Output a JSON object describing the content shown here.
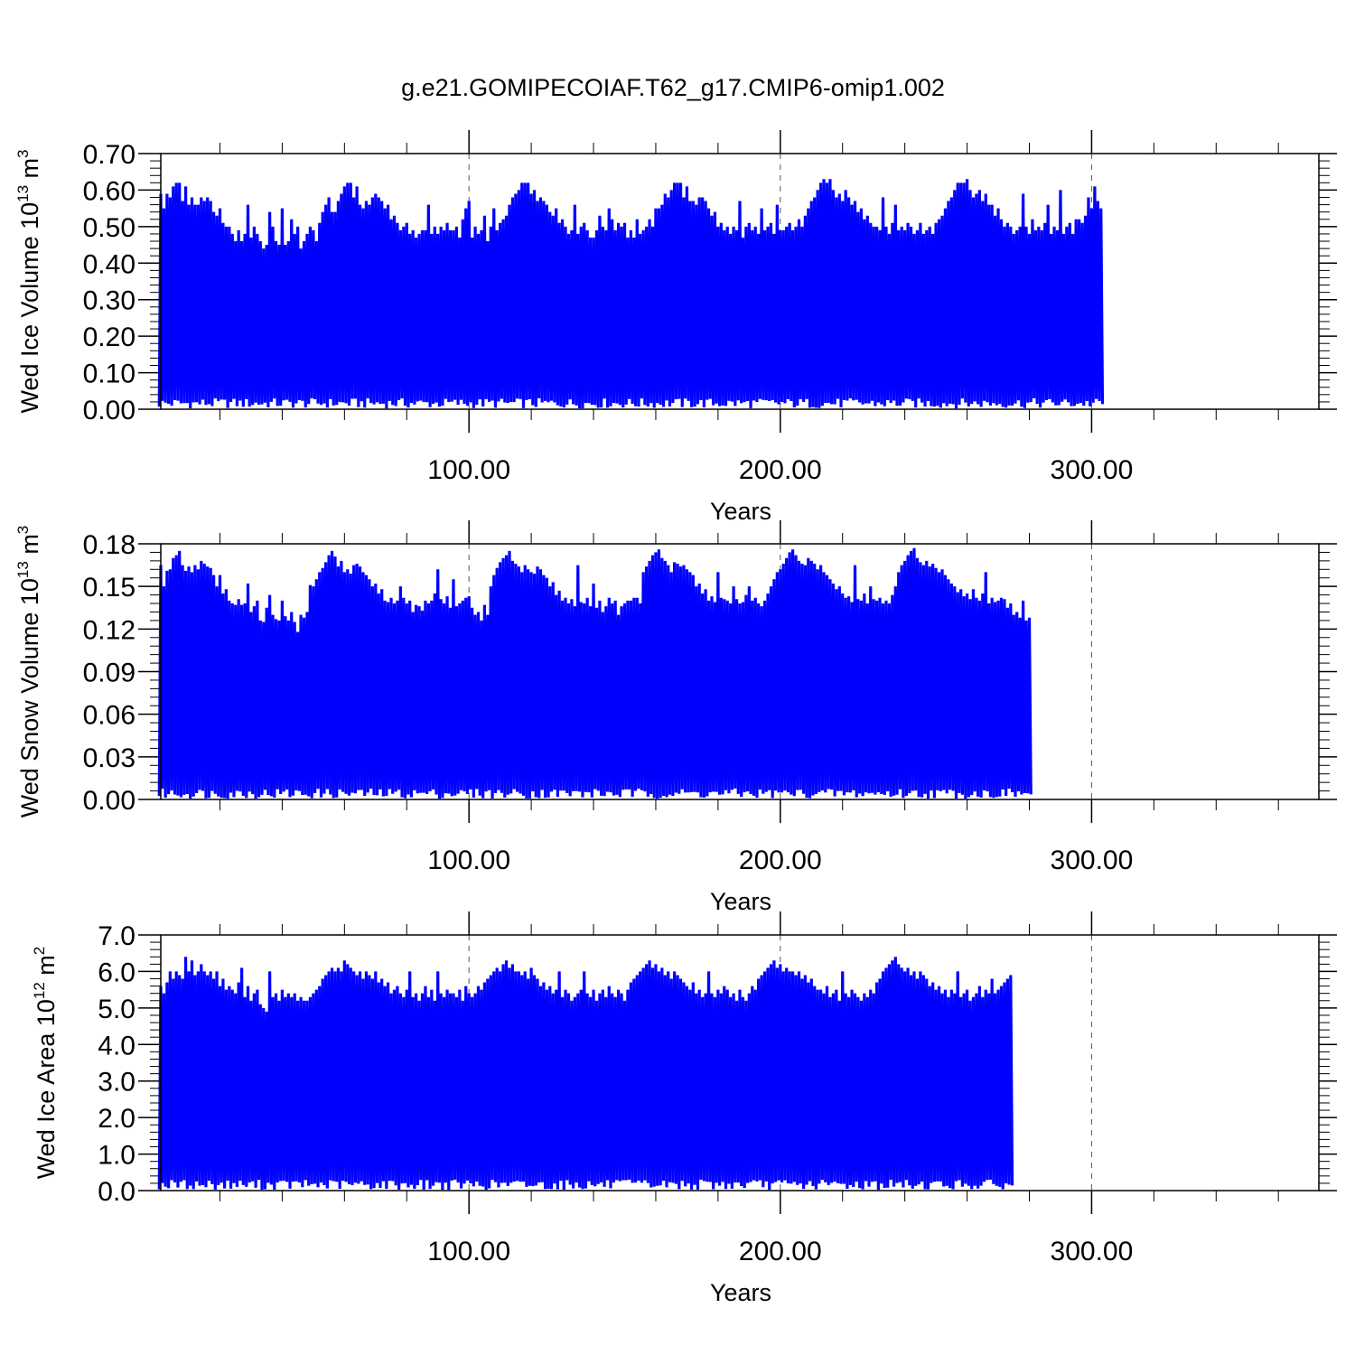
{
  "figure": {
    "title": "g.e21.GOMIPECOIAF.T62_g17.CMIP6-omip1.002"
  },
  "chart_data": [
    {
      "type": "line",
      "title": "g.e21.GOMIPECOIAF.T62_g17.CMIP6-omip1.002",
      "ylabel": "Wed Ice Volume 10",
      "ylabel_exponent": "13",
      "ylabel_unit": "m",
      "ylabel_unit_exponent": "3",
      "xlabel": "Years",
      "xlim": [
        1,
        373
      ],
      "ylim": [
        0,
        0.7
      ],
      "yticks": [
        0.0,
        0.1,
        0.2,
        0.3,
        0.4,
        0.5,
        0.6,
        0.7
      ],
      "ytick_labels": [
        "0.00",
        "0.10",
        "0.20",
        "0.30",
        "0.40",
        "0.50",
        "0.60",
        "0.70"
      ],
      "xticks": [
        100,
        200,
        300
      ],
      "xtick_labels": [
        "100.00",
        "200.00",
        "300.00"
      ],
      "grid": "dashed vertical lines at major x ticks",
      "series_color": "#0000ff",
      "series": [
        {
          "x_start": 1,
          "x_step": 1,
          "max": [
            0.59,
            0.55,
            0.59,
            0.58,
            0.61,
            0.62,
            0.62,
            0.57,
            0.61,
            0.56,
            0.58,
            0.56,
            0.56,
            0.58,
            0.57,
            0.58,
            0.57,
            0.54,
            0.53,
            0.55,
            0.51,
            0.5,
            0.5,
            0.48,
            0.46,
            0.49,
            0.46,
            0.48,
            0.56,
            0.47,
            0.5,
            0.48,
            0.46,
            0.44,
            0.45,
            0.54,
            0.5,
            0.46,
            0.45,
            0.55,
            0.45,
            0.46,
            0.52,
            0.48,
            0.5,
            0.44,
            0.46,
            0.48,
            0.5,
            0.49,
            0.46,
            0.51,
            0.54,
            0.56,
            0.58,
            0.54,
            0.54,
            0.57,
            0.59,
            0.61,
            0.62,
            0.62,
            0.58,
            0.61,
            0.56,
            0.55,
            0.57,
            0.56,
            0.58,
            0.59,
            0.58,
            0.57,
            0.55,
            0.56,
            0.52,
            0.53,
            0.51,
            0.49,
            0.5,
            0.51,
            0.48,
            0.49,
            0.47,
            0.48,
            0.49,
            0.49,
            0.56,
            0.48,
            0.5,
            0.48,
            0.5,
            0.49,
            0.51,
            0.49,
            0.49,
            0.5,
            0.47,
            0.52,
            0.55,
            0.57,
            0.47,
            0.5,
            0.48,
            0.49,
            0.53,
            0.46,
            0.5,
            0.55,
            0.49,
            0.51,
            0.52,
            0.53,
            0.56,
            0.58,
            0.59,
            0.6,
            0.62,
            0.62,
            0.62,
            0.59,
            0.6,
            0.57,
            0.58,
            0.57,
            0.56,
            0.54,
            0.53,
            0.55,
            0.51,
            0.52,
            0.5,
            0.48,
            0.49,
            0.56,
            0.48,
            0.5,
            0.51,
            0.49,
            0.47,
            0.47,
            0.49,
            0.53,
            0.5,
            0.49,
            0.55,
            0.52,
            0.49,
            0.51,
            0.5,
            0.51,
            0.47,
            0.49,
            0.47,
            0.52,
            0.48,
            0.49,
            0.5,
            0.52,
            0.5,
            0.55,
            0.55,
            0.56,
            0.59,
            0.58,
            0.6,
            0.62,
            0.62,
            0.62,
            0.58,
            0.61,
            0.57,
            0.57,
            0.56,
            0.58,
            0.58,
            0.57,
            0.55,
            0.53,
            0.54,
            0.5,
            0.51,
            0.49,
            0.5,
            0.48,
            0.5,
            0.49,
            0.57,
            0.47,
            0.5,
            0.51,
            0.49,
            0.5,
            0.48,
            0.55,
            0.49,
            0.5,
            0.51,
            0.48,
            0.56,
            0.49,
            0.49,
            0.5,
            0.51,
            0.49,
            0.5,
            0.52,
            0.5,
            0.53,
            0.55,
            0.57,
            0.58,
            0.6,
            0.62,
            0.63,
            0.62,
            0.63,
            0.6,
            0.58,
            0.59,
            0.57,
            0.6,
            0.58,
            0.56,
            0.57,
            0.54,
            0.55,
            0.52,
            0.53,
            0.51,
            0.5,
            0.5,
            0.49,
            0.58,
            0.5,
            0.48,
            0.51,
            0.56,
            0.49,
            0.5,
            0.49,
            0.51,
            0.5,
            0.48,
            0.49,
            0.51,
            0.48,
            0.49,
            0.5,
            0.48,
            0.51,
            0.52,
            0.53,
            0.55,
            0.57,
            0.58,
            0.6,
            0.62,
            0.62,
            0.62,
            0.63,
            0.6,
            0.58,
            0.59,
            0.6,
            0.57,
            0.59,
            0.56,
            0.56,
            0.53,
            0.55,
            0.52,
            0.5,
            0.51,
            0.5,
            0.48,
            0.49,
            0.5,
            0.59,
            0.5,
            0.48,
            0.52,
            0.49,
            0.5,
            0.49,
            0.51,
            0.56,
            0.48,
            0.5,
            0.49,
            0.6,
            0.48,
            0.5,
            0.51,
            0.48,
            0.52,
            0.52,
            0.51,
            0.53,
            0.58,
            0.55,
            0.61,
            0.57,
            0.55
          ]
        }
      ]
    },
    {
      "type": "line",
      "ylabel": "Wed Snow Volume 10",
      "ylabel_exponent": "13",
      "ylabel_unit": "m",
      "ylabel_unit_exponent": "3",
      "xlabel": "Years",
      "xlim": [
        1,
        373
      ],
      "ylim": [
        0,
        0.18
      ],
      "yticks": [
        0.0,
        0.03,
        0.06,
        0.09,
        0.12,
        0.15,
        0.18
      ],
      "ytick_labels": [
        "0.00",
        "0.03",
        "0.06",
        "0.09",
        "0.12",
        "0.15",
        "0.18"
      ],
      "xticks": [
        100,
        200,
        300
      ],
      "xtick_labels": [
        "100.00",
        "200.00",
        "300.00"
      ],
      "grid": "dashed vertical lines at major x ticks",
      "series_color": "#0000ff",
      "series": [
        {
          "x_start": 1,
          "x_step": 1,
          "max": [
            0.165,
            0.15,
            0.161,
            0.162,
            0.17,
            0.172,
            0.175,
            0.165,
            0.161,
            0.164,
            0.16,
            0.165,
            0.162,
            0.168,
            0.166,
            0.164,
            0.163,
            0.158,
            0.15,
            0.158,
            0.145,
            0.148,
            0.14,
            0.138,
            0.137,
            0.141,
            0.137,
            0.138,
            0.152,
            0.132,
            0.136,
            0.14,
            0.126,
            0.125,
            0.135,
            0.144,
            0.13,
            0.127,
            0.126,
            0.14,
            0.129,
            0.126,
            0.132,
            0.125,
            0.118,
            0.13,
            0.128,
            0.132,
            0.151,
            0.15,
            0.155,
            0.16,
            0.163,
            0.167,
            0.172,
            0.175,
            0.171,
            0.164,
            0.168,
            0.16,
            0.162,
            0.159,
            0.165,
            0.166,
            0.164,
            0.16,
            0.158,
            0.155,
            0.15,
            0.152,
            0.145,
            0.148,
            0.14,
            0.139,
            0.142,
            0.138,
            0.14,
            0.15,
            0.142,
            0.138,
            0.14,
            0.132,
            0.137,
            0.136,
            0.133,
            0.14,
            0.138,
            0.14,
            0.145,
            0.162,
            0.141,
            0.138,
            0.143,
            0.135,
            0.155,
            0.136,
            0.138,
            0.14,
            0.142,
            0.143,
            0.135,
            0.13,
            0.132,
            0.126,
            0.137,
            0.13,
            0.15,
            0.158,
            0.163,
            0.167,
            0.17,
            0.172,
            0.175,
            0.168,
            0.166,
            0.164,
            0.16,
            0.165,
            0.162,
            0.16,
            0.159,
            0.164,
            0.162,
            0.158,
            0.156,
            0.15,
            0.153,
            0.144,
            0.147,
            0.14,
            0.142,
            0.138,
            0.141,
            0.136,
            0.165,
            0.139,
            0.138,
            0.142,
            0.136,
            0.152,
            0.135,
            0.14,
            0.132,
            0.136,
            0.142,
            0.138,
            0.14,
            0.13,
            0.136,
            0.138,
            0.14,
            0.14,
            0.142,
            0.142,
            0.138,
            0.16,
            0.164,
            0.168,
            0.172,
            0.174,
            0.176,
            0.17,
            0.168,
            0.165,
            0.16,
            0.167,
            0.166,
            0.164,
            0.165,
            0.162,
            0.16,
            0.158,
            0.15,
            0.152,
            0.145,
            0.148,
            0.14,
            0.143,
            0.139,
            0.16,
            0.142,
            0.141,
            0.14,
            0.138,
            0.15,
            0.141,
            0.138,
            0.139,
            0.144,
            0.15,
            0.14,
            0.142,
            0.138,
            0.136,
            0.14,
            0.145,
            0.15,
            0.155,
            0.16,
            0.162,
            0.166,
            0.17,
            0.174,
            0.176,
            0.172,
            0.168,
            0.166,
            0.165,
            0.17,
            0.168,
            0.166,
            0.162,
            0.165,
            0.16,
            0.158,
            0.155,
            0.152,
            0.148,
            0.15,
            0.145,
            0.142,
            0.143,
            0.139,
            0.165,
            0.141,
            0.14,
            0.145,
            0.138,
            0.15,
            0.141,
            0.14,
            0.142,
            0.138,
            0.14,
            0.138,
            0.144,
            0.15,
            0.16,
            0.165,
            0.168,
            0.172,
            0.175,
            0.177,
            0.17,
            0.167,
            0.165,
            0.168,
            0.164,
            0.166,
            0.163,
            0.16,
            0.162,
            0.158,
            0.155,
            0.152,
            0.15,
            0.146,
            0.148,
            0.143,
            0.145,
            0.141,
            0.148,
            0.142,
            0.14,
            0.145,
            0.16,
            0.138,
            0.142,
            0.139,
            0.14,
            0.142,
            0.141,
            0.135,
            0.138,
            0.13,
            0.132,
            0.128,
            0.14,
            0.126,
            0.128
          ]
        }
      ]
    },
    {
      "type": "line",
      "ylabel": "Wed Ice Area 10",
      "ylabel_exponent": "12",
      "ylabel_unit": "m",
      "ylabel_unit_exponent": "2",
      "xlabel": "Years",
      "xlim": [
        1,
        373
      ],
      "ylim": [
        0,
        7.0
      ],
      "yticks": [
        0.0,
        1.0,
        2.0,
        3.0,
        4.0,
        5.0,
        6.0,
        7.0
      ],
      "ytick_labels": [
        "0.0",
        "1.0",
        "2.0",
        "3.0",
        "4.0",
        "5.0",
        "6.0",
        "7.0"
      ],
      "xticks": [
        100,
        200,
        300
      ],
      "xtick_labels": [
        "100.00",
        "200.00",
        "300.00"
      ],
      "grid": "dashed vertical lines at major x ticks",
      "series_color": "#0000ff",
      "series": [
        {
          "x_start": 1,
          "x_step": 1,
          "max": [
            5.6,
            5.4,
            5.7,
            6.0,
            5.8,
            6.0,
            5.9,
            5.8,
            6.4,
            6.0,
            6.3,
            5.9,
            6.0,
            6.2,
            6.0,
            5.9,
            6.0,
            5.8,
            6.0,
            5.6,
            5.8,
            5.5,
            5.6,
            5.5,
            5.4,
            5.7,
            6.1,
            5.3,
            5.6,
            5.2,
            5.4,
            5.5,
            5.1,
            5.0,
            4.9,
            6.0,
            5.3,
            5.4,
            5.2,
            5.5,
            5.3,
            5.4,
            5.3,
            5.4,
            5.2,
            5.3,
            5.2,
            5.2,
            5.3,
            5.4,
            5.5,
            5.6,
            5.8,
            5.9,
            6.0,
            6.1,
            6.0,
            6.1,
            6.0,
            6.3,
            6.2,
            6.1,
            6.0,
            5.9,
            6.0,
            5.8,
            6.0,
            5.9,
            5.8,
            6.0,
            5.7,
            5.8,
            5.6,
            5.7,
            5.4,
            5.5,
            5.6,
            5.4,
            5.3,
            5.5,
            6.0,
            5.3,
            5.4,
            5.2,
            5.4,
            5.6,
            5.3,
            5.5,
            5.2,
            6.0,
            5.4,
            5.3,
            5.5,
            5.4,
            5.4,
            5.3,
            5.5,
            5.2,
            5.6,
            5.4,
            5.3,
            5.4,
            5.6,
            5.5,
            5.7,
            5.8,
            5.9,
            6.0,
            6.1,
            6.0,
            6.2,
            6.3,
            6.1,
            6.2,
            6.0,
            6.0,
            5.9,
            6.0,
            5.8,
            6.1,
            5.9,
            5.8,
            5.6,
            5.7,
            5.5,
            5.6,
            5.4,
            5.5,
            6.0,
            5.3,
            5.5,
            5.4,
            5.2,
            5.3,
            5.4,
            5.5,
            6.0,
            5.4,
            5.3,
            5.5,
            5.2,
            5.4,
            5.5,
            5.3,
            5.6,
            5.4,
            5.3,
            5.5,
            5.4,
            5.2,
            5.5,
            5.7,
            5.8,
            5.9,
            6.0,
            6.1,
            6.2,
            6.3,
            6.1,
            6.2,
            6.0,
            6.1,
            5.9,
            6.0,
            5.8,
            6.0,
            5.9,
            5.8,
            5.7,
            5.6,
            5.5,
            5.7,
            5.4,
            5.5,
            5.3,
            5.4,
            6.0,
            5.4,
            5.3,
            5.5,
            5.4,
            5.6,
            5.5,
            5.3,
            5.4,
            5.2,
            5.5,
            5.3,
            5.2,
            5.4,
            5.6,
            5.5,
            5.8,
            5.9,
            6.0,
            6.1,
            6.2,
            6.3,
            6.1,
            6.2,
            6.0,
            6.1,
            6.0,
            6.0,
            5.9,
            6.0,
            5.8,
            5.9,
            5.7,
            5.8,
            5.6,
            5.5,
            5.5,
            5.4,
            5.6,
            5.3,
            5.4,
            5.5,
            5.2,
            6.0,
            5.4,
            5.3,
            5.5,
            5.4,
            5.3,
            5.2,
            5.4,
            5.3,
            5.5,
            5.4,
            5.7,
            5.8,
            6.0,
            6.1,
            6.2,
            6.3,
            6.4,
            6.2,
            6.1,
            6.0,
            6.1,
            5.9,
            6.0,
            5.8,
            6.0,
            5.9,
            5.8,
            5.6,
            5.7,
            5.5,
            5.6,
            5.4,
            5.5,
            5.3,
            5.5,
            5.4,
            6.0,
            5.3,
            5.4,
            5.5,
            5.2,
            5.3,
            5.4,
            5.6,
            5.3,
            5.5,
            5.4,
            5.8,
            5.4,
            5.5,
            5.6,
            5.7,
            5.8,
            5.9
          ]
        }
      ]
    }
  ]
}
